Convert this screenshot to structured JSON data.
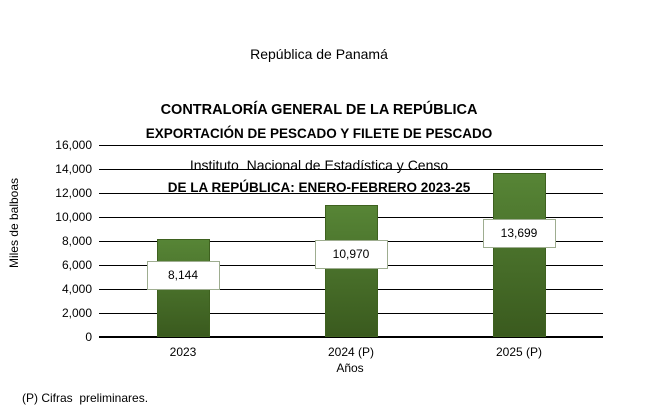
{
  "header": {
    "line1": "República de Panamá",
    "line2": "CONTRALORÍA GENERAL DE LA REPÚBLICA",
    "line3": "Instituto  Nacional de Estadística y Censo"
  },
  "chart": {
    "title_line1": "EXPORTACIÓN DE PESCADO Y FILETE DE PESCADO",
    "title_line2": "DE LA REPÚBLICA: ENERO-FEBRERO 2023-25",
    "y_axis_title": "Miles de balboas",
    "x_axis_title": "Años",
    "footnote": "(P) Cifras  preliminares."
  },
  "chart_data": {
    "type": "bar",
    "title": "EXPORTACIÓN DE PESCADO Y FILETE DE PESCADO DE LA REPÚBLICA: ENERO-FEBRERO 2023-25",
    "categories": [
      "2023",
      "2024 (P)",
      "2025 (P)"
    ],
    "values": [
      8144,
      10970,
      13699
    ],
    "value_labels": [
      "8,144",
      "10,970",
      "13,699"
    ],
    "xlabel": "Años",
    "ylabel": "Miles de balboas",
    "ylim": [
      0,
      16000
    ],
    "ytick_step": 2000,
    "ytick_labels": [
      "0",
      "2,000",
      "4,000",
      "6,000",
      "8,000",
      "10,000",
      "12,000",
      "14,000",
      "16,000"
    ],
    "grid": true,
    "legend": false,
    "colors": {
      "bar_top": "#578536",
      "bar_bottom": "#3A5A1E",
      "bar_border": "#3E611F",
      "label_box_border": "#9EAD90",
      "label_box_fill": "#FFFFFF",
      "gridline": "#000000",
      "text": "#000000",
      "background": "#FFFFFF"
    }
  }
}
